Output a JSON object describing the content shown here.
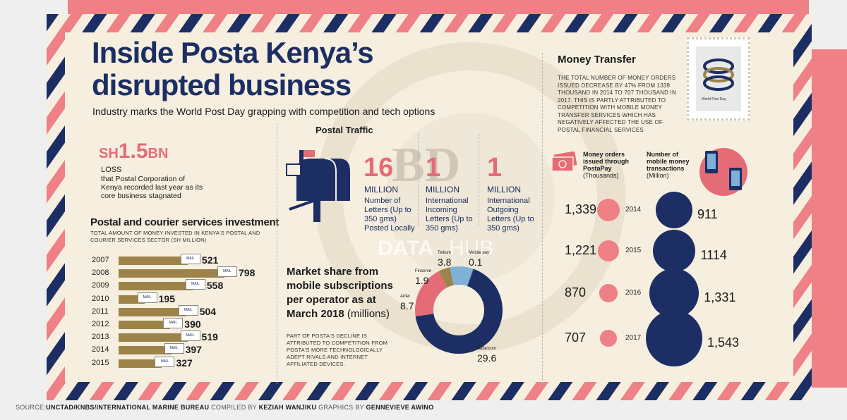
{
  "title_line1": "Inside Posta Kenya’s",
  "title_line2": "disrupted business",
  "subtitle": "Industry marks the World Post Day grapping with competition and tech options",
  "loss": {
    "prefix": "SH",
    "number": "1.5",
    "suffix": "BN",
    "label": "LOSS",
    "desc": "that Postal Corporation of Kenya recorded last year as its core business stagnated"
  },
  "investment": {
    "title": "Postal and courier services investment",
    "subtitle": "TOTAL AMOUNT OF MONEY INVESTED IN KENYA'S POSTAL AND COURIER SERVICES SECTOR (SH MILLION)",
    "truck_label": "MAIL",
    "rows": [
      {
        "year": "2007",
        "value": 521
      },
      {
        "year": "2008",
        "value": 798
      },
      {
        "year": "2009",
        "value": 558
      },
      {
        "year": "2010",
        "value": 195
      },
      {
        "year": "2011",
        "value": 504
      },
      {
        "year": "2012",
        "value": 390
      },
      {
        "year": "2013",
        "value": 519
      },
      {
        "year": "2014",
        "value": 397
      },
      {
        "year": "2015",
        "value": 327
      }
    ]
  },
  "postal_traffic": {
    "title": "Postal Traffic",
    "items": [
      {
        "number": "16",
        "unit": "MILLION",
        "desc": "Number of Letters (Up to 350 gms) Posted Locally"
      },
      {
        "number": "1",
        "unit": "MILLION",
        "desc": "International Incoming Letters (Up to 350 gms)"
      },
      {
        "number": "1",
        "unit": "MILLION",
        "desc": "International Outgoing Letters (Up to 350 gms)"
      }
    ]
  },
  "market_share": {
    "title_lines": [
      "Market share from",
      "mobile subscriptions",
      "per operator as at"
    ],
    "title_last_bold": "March 2018",
    "title_last_unit": "(millions)",
    "note": "PART OF POSTA'S DECLINE IS ATTRIBUTED TO COMPETITION FROM POSTA'S MORE TECHNOLOGICALLY ADEPT RIVALS AND INTERNET AFFILIATED DEVICES."
  },
  "money_transfer": {
    "title": "Money Transfer",
    "text": "THE TOTAL NUMBER OF MONEY ORDERS ISSUED DECREASE BY 47% FROM 1339 THOUSAND IN 2014 TO 707 THOUSAND IN 2017. THIS IS PARTLY ATTRIBUTED TO COMPETITION WITH MOBILE MONEY TRANSFER SERVICES WHICH HAS NEGATIVELY AFFECTED THE USE OF POSTAL FINANCIAL SERVICES",
    "left_header_bold": "Money orders issued through PostaPay",
    "left_header_unit": "(Thousands)",
    "right_header_bold": "Number of mobile money transactions",
    "right_header_unit": "(Million)",
    "rows": [
      {
        "year": "2014",
        "orders": "1,339",
        "mobile": "911"
      },
      {
        "year": "2015",
        "orders": "1,221",
        "mobile": "1114"
      },
      {
        "year": "2016",
        "orders": "870",
        "mobile": "1,331"
      },
      {
        "year": "2017",
        "orders": "707",
        "mobile": "1,543"
      }
    ]
  },
  "stamp_text": "World Post Day",
  "watermark_letters": "BD",
  "watermark_data": "DATA",
  "watermark_hub": "HUB",
  "source": {
    "prefix": "SOURCE:",
    "bold1": "UNCTAD/KNBS/INTERNATIONAL MARINE BUREAU",
    "mid": " COMPILED BY ",
    "bold2": "KEZIAH WANJIKU",
    "mid2": "  GRAPHICS BY ",
    "bold3": "GENNEVIEVE AWINO"
  },
  "colors": {
    "navy": "#1c2e63",
    "pink": "#e56c76",
    "gold": "#9d834a",
    "paper": "#f6efdf",
    "lightblue": "#7fb0d6"
  },
  "chart_data": [
    {
      "type": "bar",
      "title": "Postal and courier services investment",
      "categories": [
        "2007",
        "2008",
        "2009",
        "2010",
        "2011",
        "2012",
        "2013",
        "2014",
        "2015"
      ],
      "values": [
        521,
        798,
        558,
        195,
        504,
        390,
        519,
        397,
        327
      ]
    },
    {
      "type": "pie",
      "title": "Market share from mobile subscriptions per operator as at March 2018 (millions)",
      "categories": [
        "Safaricom",
        "Airtel",
        "Finserve",
        "Telkom",
        "Mobile pay"
      ],
      "values": [
        29.6,
        8.7,
        1.9,
        3.8,
        0.1
      ],
      "labels": [
        "29.6",
        "8.7",
        "1.9",
        "3.8",
        "0.1"
      ],
      "colors": [
        "#1c2e63",
        "#e56c76",
        "#9d834a",
        "#7fb0d6",
        "#2f4f86"
      ]
    },
    {
      "type": "scatter",
      "title": "Money Transfer",
      "categories": [
        "2014",
        "2015",
        "2016",
        "2017"
      ],
      "series": [
        {
          "name": "Money orders issued through PostaPay",
          "values": [
            1339,
            1221,
            870,
            707
          ]
        },
        {
          "name": "Number of mobile money transactions",
          "values": [
            911,
            1114,
            1331,
            1543
          ]
        }
      ]
    }
  ]
}
